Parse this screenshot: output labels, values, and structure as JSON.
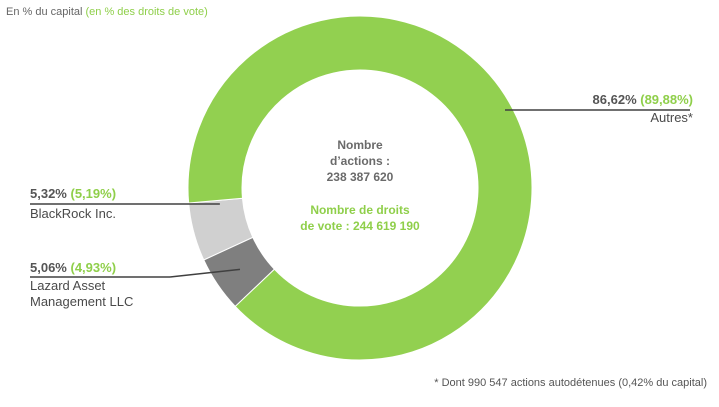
{
  "subtitle": {
    "capital_text": "En % du capital",
    "vote_text": "(en % des droits de vote)"
  },
  "center": {
    "shares_line1": "Nombre",
    "shares_line2": "d’actions :",
    "shares_line3": "238 387 620",
    "votes_line1": "Nombre de droits",
    "votes_line2": "de vote : 244 619 190"
  },
  "footnote": "* Dont 990 547 actions autodétenues  (0,42% du capital)",
  "chart_data": {
    "type": "donut",
    "unit": "%",
    "series": [
      {
        "name": "Autres*",
        "capital": 86.62,
        "votes": 89.88,
        "capital_label": "86,62%",
        "votes_label": "(89,88%)",
        "color": "#92d050"
      },
      {
        "name": "BlackRock Inc.",
        "capital": 5.32,
        "votes": 5.19,
        "capital_label": "5,32%",
        "votes_label": "(5,19%)",
        "color": "#d0d0d0"
      },
      {
        "name": "Lazard Asset Management LLC",
        "capital": 5.06,
        "votes": 4.93,
        "capital_label": "5,06%",
        "votes_label": "(4,93%)",
        "color": "#7f7f7f"
      }
    ],
    "colors": {
      "line": "#404040",
      "accent_green": "#8fcf4a"
    }
  }
}
